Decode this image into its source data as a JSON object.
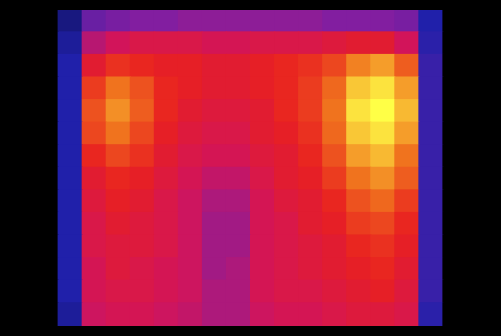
{
  "chart_data": {
    "type": "heatmap",
    "grid": false,
    "tick_labels": false,
    "clim": [
      0,
      100
    ],
    "cells": [
      [
        0,
        0,
        15,
        35,
        38,
        40,
        40,
        42,
        42,
        42,
        42,
        42,
        42,
        40,
        40,
        40,
        38,
        20,
        0,
        0
      ],
      [
        0,
        0,
        18,
        50,
        55,
        58,
        58,
        58,
        56,
        56,
        58,
        58,
        58,
        60,
        62,
        62,
        55,
        22,
        0,
        0
      ],
      [
        0,
        0,
        20,
        62,
        68,
        66,
        64,
        64,
        62,
        62,
        64,
        66,
        68,
        72,
        82,
        86,
        76,
        25,
        0,
        0
      ],
      [
        0,
        0,
        20,
        70,
        80,
        74,
        66,
        64,
        62,
        62,
        64,
        66,
        70,
        78,
        92,
        96,
        86,
        25,
        0,
        0
      ],
      [
        0,
        0,
        20,
        74,
        84,
        76,
        66,
        62,
        60,
        60,
        62,
        66,
        70,
        80,
        96,
        100,
        90,
        25,
        0,
        0
      ],
      [
        0,
        0,
        20,
        72,
        80,
        72,
        64,
        60,
        58,
        58,
        62,
        64,
        68,
        78,
        92,
        96,
        86,
        25,
        0,
        0
      ],
      [
        0,
        0,
        20,
        66,
        72,
        68,
        62,
        58,
        56,
        56,
        60,
        62,
        66,
        74,
        86,
        90,
        80,
        25,
        0,
        0
      ],
      [
        0,
        0,
        20,
        62,
        66,
        64,
        60,
        56,
        52,
        52,
        58,
        62,
        64,
        70,
        80,
        84,
        76,
        25,
        0,
        0
      ],
      [
        0,
        0,
        20,
        60,
        64,
        62,
        58,
        54,
        48,
        48,
        56,
        60,
        62,
        66,
        74,
        78,
        70,
        25,
        0,
        0
      ],
      [
        0,
        0,
        20,
        58,
        62,
        60,
        58,
        54,
        46,
        46,
        56,
        58,
        62,
        64,
        70,
        72,
        66,
        25,
        0,
        0
      ],
      [
        0,
        0,
        20,
        58,
        60,
        60,
        58,
        54,
        46,
        46,
        56,
        58,
        60,
        62,
        66,
        68,
        64,
        25,
        0,
        0
      ],
      [
        0,
        0,
        20,
        56,
        60,
        58,
        56,
        54,
        46,
        48,
        56,
        58,
        60,
        62,
        64,
        66,
        62,
        25,
        0,
        0
      ],
      [
        0,
        0,
        20,
        56,
        58,
        58,
        56,
        54,
        48,
        48,
        56,
        58,
        58,
        60,
        62,
        64,
        60,
        25,
        0,
        0
      ],
      [
        0,
        0,
        18,
        54,
        56,
        56,
        54,
        52,
        48,
        48,
        54,
        56,
        56,
        58,
        60,
        60,
        58,
        22,
        0,
        0
      ]
    ]
  }
}
